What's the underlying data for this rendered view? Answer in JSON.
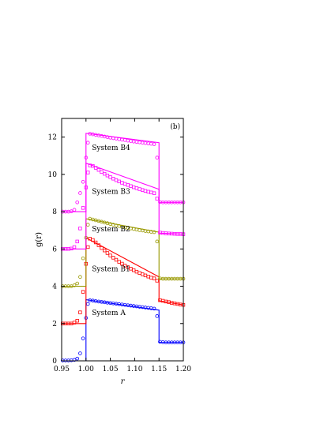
{
  "chart_data": {
    "type": "line",
    "panel_label": "(b)",
    "xlabel": "r",
    "ylabel": "g(r)",
    "xlim": [
      0.95,
      1.2
    ],
    "ylim": [
      0,
      13
    ],
    "xticks": [
      "0.95",
      "1.00",
      "1.05",
      "1.10",
      "1.15",
      "1.20"
    ],
    "yticks": [
      "0",
      "2",
      "4",
      "6",
      "8",
      "10",
      "12"
    ],
    "legend": "none",
    "grid": false,
    "series": [
      {
        "name": "System A",
        "color": "#0000ff",
        "line": [
          [
            0.95,
            0
          ],
          [
            1.0,
            0
          ],
          [
            1.0,
            3.28
          ],
          [
            1.15,
            2.72
          ],
          [
            1.15,
            0.99
          ],
          [
            1.2,
            0.99
          ]
        ],
        "points": [
          [
            0.952,
            0.02
          ],
          [
            0.958,
            0.02
          ],
          [
            0.964,
            0.02
          ],
          [
            0.97,
            0.03
          ],
          [
            0.976,
            0.05
          ],
          [
            0.982,
            0.12
          ],
          [
            0.988,
            0.4
          ],
          [
            0.994,
            1.2
          ],
          [
            1.0,
            2.3
          ],
          [
            1.004,
            3.05
          ],
          [
            1.008,
            3.25
          ],
          [
            1.014,
            3.23
          ],
          [
            1.02,
            3.2
          ],
          [
            1.026,
            3.18
          ],
          [
            1.032,
            3.16
          ],
          [
            1.038,
            3.14
          ],
          [
            1.044,
            3.12
          ],
          [
            1.05,
            3.1
          ],
          [
            1.056,
            3.08
          ],
          [
            1.062,
            3.06
          ],
          [
            1.068,
            3.04
          ],
          [
            1.074,
            3.02
          ],
          [
            1.08,
            3.0
          ],
          [
            1.086,
            2.98
          ],
          [
            1.092,
            2.96
          ],
          [
            1.098,
            2.94
          ],
          [
            1.104,
            2.92
          ],
          [
            1.11,
            2.9
          ],
          [
            1.116,
            2.88
          ],
          [
            1.122,
            2.86
          ],
          [
            1.128,
            2.84
          ],
          [
            1.134,
            2.82
          ],
          [
            1.14,
            2.8
          ],
          [
            1.146,
            2.4
          ],
          [
            1.152,
            1.02
          ],
          [
            1.158,
            1.0
          ],
          [
            1.164,
            0.99
          ],
          [
            1.17,
            0.99
          ],
          [
            1.176,
            0.99
          ],
          [
            1.182,
            0.99
          ],
          [
            1.188,
            0.99
          ],
          [
            1.194,
            0.99
          ],
          [
            1.2,
            0.99
          ]
        ]
      },
      {
        "name": "System B1",
        "color": "#ff0000",
        "line": [
          [
            0.95,
            2.0
          ],
          [
            1.0,
            2.0
          ],
          [
            1.0,
            6.6
          ],
          [
            1.15,
            4.5
          ],
          [
            1.15,
            3.22
          ],
          [
            1.2,
            3.0
          ]
        ],
        "points": [
          [
            0.952,
            2.0
          ],
          [
            0.958,
            2.0
          ],
          [
            0.964,
            2.0
          ],
          [
            0.97,
            2.0
          ],
          [
            0.976,
            2.05
          ],
          [
            0.982,
            2.15
          ],
          [
            0.988,
            2.6
          ],
          [
            0.994,
            3.7
          ],
          [
            1.0,
            5.2
          ],
          [
            1.004,
            6.1
          ],
          [
            1.008,
            6.55
          ],
          [
            1.014,
            6.48
          ],
          [
            1.02,
            6.35
          ],
          [
            1.026,
            6.2
          ],
          [
            1.032,
            6.05
          ],
          [
            1.038,
            5.92
          ],
          [
            1.044,
            5.78
          ],
          [
            1.05,
            5.65
          ],
          [
            1.056,
            5.53
          ],
          [
            1.062,
            5.42
          ],
          [
            1.068,
            5.31
          ],
          [
            1.074,
            5.21
          ],
          [
            1.08,
            5.11
          ],
          [
            1.086,
            5.02
          ],
          [
            1.092,
            4.94
          ],
          [
            1.098,
            4.86
          ],
          [
            1.104,
            4.78
          ],
          [
            1.11,
            4.71
          ],
          [
            1.116,
            4.64
          ],
          [
            1.122,
            4.58
          ],
          [
            1.128,
            4.52
          ],
          [
            1.134,
            4.46
          ],
          [
            1.14,
            4.42
          ],
          [
            1.146,
            4.3
          ],
          [
            1.152,
            3.25
          ],
          [
            1.158,
            3.22
          ],
          [
            1.164,
            3.18
          ],
          [
            1.17,
            3.15
          ],
          [
            1.176,
            3.11
          ],
          [
            1.182,
            3.08
          ],
          [
            1.188,
            3.05
          ],
          [
            1.194,
            3.02
          ],
          [
            1.2,
            3.0
          ]
        ]
      },
      {
        "name": "System B2",
        "color": "#999900",
        "line": [
          [
            0.95,
            4.0
          ],
          [
            1.0,
            4.0
          ],
          [
            1.0,
            7.62
          ],
          [
            1.15,
            6.9
          ],
          [
            1.15,
            4.4
          ],
          [
            1.2,
            4.4
          ]
        ],
        "points": [
          [
            0.952,
            4.0
          ],
          [
            0.958,
            4.0
          ],
          [
            0.964,
            4.0
          ],
          [
            0.97,
            4.0
          ],
          [
            0.976,
            4.05
          ],
          [
            0.982,
            4.15
          ],
          [
            0.988,
            4.5
          ],
          [
            0.994,
            5.5
          ],
          [
            1.0,
            6.6
          ],
          [
            1.004,
            7.3
          ],
          [
            1.008,
            7.62
          ],
          [
            1.014,
            7.58
          ],
          [
            1.02,
            7.54
          ],
          [
            1.026,
            7.5
          ],
          [
            1.032,
            7.46
          ],
          [
            1.038,
            7.42
          ],
          [
            1.044,
            7.38
          ],
          [
            1.05,
            7.34
          ],
          [
            1.056,
            7.3
          ],
          [
            1.062,
            7.26
          ],
          [
            1.068,
            7.23
          ],
          [
            1.074,
            7.19
          ],
          [
            1.08,
            7.16
          ],
          [
            1.086,
            7.13
          ],
          [
            1.092,
            7.1
          ],
          [
            1.098,
            7.07
          ],
          [
            1.104,
            7.04
          ],
          [
            1.11,
            7.01
          ],
          [
            1.116,
            6.99
          ],
          [
            1.122,
            6.96
          ],
          [
            1.128,
            6.94
          ],
          [
            1.134,
            6.92
          ],
          [
            1.14,
            6.9
          ],
          [
            1.146,
            6.4
          ],
          [
            1.152,
            4.42
          ],
          [
            1.158,
            4.4
          ],
          [
            1.164,
            4.4
          ],
          [
            1.17,
            4.4
          ],
          [
            1.176,
            4.4
          ],
          [
            1.182,
            4.4
          ],
          [
            1.188,
            4.4
          ],
          [
            1.194,
            4.4
          ],
          [
            1.2,
            4.4
          ]
        ]
      },
      {
        "name": "System B3",
        "color": "#ff00ff",
        "line": [
          [
            0.95,
            6.0
          ],
          [
            1.0,
            6.0
          ],
          [
            1.0,
            10.6
          ],
          [
            1.15,
            9.2
          ],
          [
            1.15,
            6.85
          ],
          [
            1.2,
            6.8
          ]
        ],
        "points": [
          [
            0.952,
            6.0
          ],
          [
            0.958,
            6.0
          ],
          [
            0.964,
            6.0
          ],
          [
            0.97,
            6.02
          ],
          [
            0.976,
            6.1
          ],
          [
            0.982,
            6.4
          ],
          [
            0.988,
            7.1
          ],
          [
            0.994,
            8.2
          ],
          [
            1.0,
            9.3
          ],
          [
            1.004,
            10.1
          ],
          [
            1.008,
            10.48
          ],
          [
            1.014,
            10.45
          ],
          [
            1.02,
            10.35
          ],
          [
            1.026,
            10.24
          ],
          [
            1.032,
            10.13
          ],
          [
            1.038,
            10.03
          ],
          [
            1.044,
            9.94
          ],
          [
            1.05,
            9.85
          ],
          [
            1.056,
            9.77
          ],
          [
            1.062,
            9.69
          ],
          [
            1.068,
            9.62
          ],
          [
            1.074,
            9.55
          ],
          [
            1.08,
            9.49
          ],
          [
            1.086,
            9.43
          ],
          [
            1.092,
            9.37
          ],
          [
            1.098,
            9.31
          ],
          [
            1.104,
            9.26
          ],
          [
            1.11,
            9.21
          ],
          [
            1.116,
            9.16
          ],
          [
            1.122,
            9.11
          ],
          [
            1.128,
            9.07
          ],
          [
            1.134,
            9.03
          ],
          [
            1.14,
            8.99
          ],
          [
            1.146,
            8.7
          ],
          [
            1.152,
            6.88
          ],
          [
            1.158,
            6.86
          ],
          [
            1.164,
            6.84
          ],
          [
            1.17,
            6.83
          ],
          [
            1.176,
            6.82
          ],
          [
            1.182,
            6.81
          ],
          [
            1.188,
            6.8
          ],
          [
            1.194,
            6.8
          ],
          [
            1.2,
            6.79
          ]
        ]
      },
      {
        "name": "System B4",
        "color": "#ff00ff",
        "line": [
          [
            0.95,
            8.0
          ],
          [
            1.0,
            8.0
          ],
          [
            1.0,
            12.2
          ],
          [
            1.15,
            11.7
          ],
          [
            1.15,
            8.5
          ],
          [
            1.2,
            8.5
          ]
        ],
        "points": [
          [
            0.952,
            8.0
          ],
          [
            0.958,
            8.0
          ],
          [
            0.964,
            8.0
          ],
          [
            0.97,
            8.02
          ],
          [
            0.976,
            8.1
          ],
          [
            0.982,
            8.5
          ],
          [
            0.988,
            9.0
          ],
          [
            0.994,
            9.6
          ],
          [
            1.0,
            10.9
          ],
          [
            1.004,
            11.7
          ],
          [
            1.008,
            12.18
          ],
          [
            1.014,
            12.15
          ],
          [
            1.02,
            12.12
          ],
          [
            1.026,
            12.09
          ],
          [
            1.032,
            12.06
          ],
          [
            1.038,
            12.03
          ],
          [
            1.044,
            12.0
          ],
          [
            1.05,
            11.97
          ],
          [
            1.056,
            11.94
          ],
          [
            1.062,
            11.92
          ],
          [
            1.068,
            11.89
          ],
          [
            1.074,
            11.86
          ],
          [
            1.08,
            11.84
          ],
          [
            1.086,
            11.81
          ],
          [
            1.092,
            11.79
          ],
          [
            1.098,
            11.76
          ],
          [
            1.104,
            11.74
          ],
          [
            1.11,
            11.72
          ],
          [
            1.116,
            11.7
          ],
          [
            1.122,
            11.68
          ],
          [
            1.128,
            11.66
          ],
          [
            1.134,
            11.64
          ],
          [
            1.14,
            11.62
          ],
          [
            1.146,
            10.9
          ],
          [
            1.152,
            8.52
          ],
          [
            1.158,
            8.5
          ],
          [
            1.164,
            8.5
          ],
          [
            1.17,
            8.5
          ],
          [
            1.176,
            8.5
          ],
          [
            1.182,
            8.5
          ],
          [
            1.188,
            8.5
          ],
          [
            1.194,
            8.5
          ],
          [
            1.2,
            8.5
          ]
        ]
      }
    ],
    "labels": [
      {
        "text": "System A",
        "series": "System A",
        "x": 1.012,
        "y": 2.45
      },
      {
        "text": "System B1",
        "series": "System B1",
        "x": 1.012,
        "y": 4.8
      },
      {
        "text": "System B2",
        "series": "System B2",
        "x": 1.012,
        "y": 6.95
      },
      {
        "text": "System B3",
        "series": "System B3",
        "x": 1.012,
        "y": 8.95
      },
      {
        "text": "System B4",
        "series": "System B4",
        "x": 1.012,
        "y": 11.3
      }
    ],
    "marker_shapes": {
      "System A": "circle",
      "System B1": "square",
      "System B2": "circle",
      "System B3": "square",
      "System B4": "circle"
    }
  }
}
